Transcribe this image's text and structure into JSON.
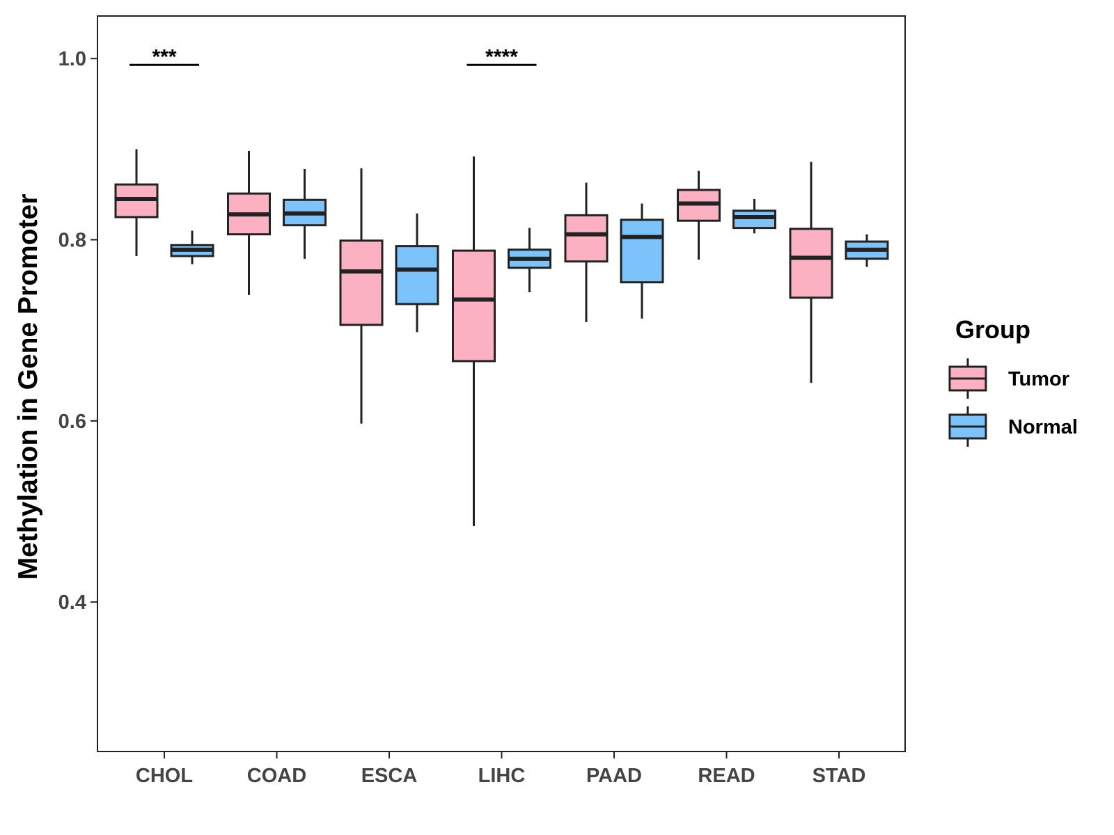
{
  "chart_data": {
    "type": "boxplot",
    "title": "",
    "xlabel": "",
    "ylabel": "Methylation in Gene Promoter",
    "ylim": [
      0.235,
      1.047
    ],
    "yticks": [
      0.4,
      0.6,
      0.8,
      1.0
    ],
    "ytick_labels": [
      "0.4",
      "0.6",
      "0.8",
      "1.0"
    ],
    "categories": [
      "CHOL",
      "COAD",
      "ESCA",
      "LIHC",
      "PAAD",
      "READ",
      "STAD"
    ],
    "legend": {
      "title": "Group",
      "position": "right",
      "entries": [
        {
          "name": "Tumor",
          "color": "#FBB1C2"
        },
        {
          "name": "Normal",
          "color": "#7BC3FA"
        }
      ]
    },
    "series": [
      {
        "name": "Tumor",
        "color": "#FBB1C2",
        "boxes": [
          {
            "min": 0.782,
            "q1": 0.825,
            "median": 0.845,
            "q3": 0.861,
            "max": 0.9
          },
          {
            "min": 0.739,
            "q1": 0.806,
            "median": 0.828,
            "q3": 0.851,
            "max": 0.898
          },
          {
            "min": 0.597,
            "q1": 0.706,
            "median": 0.765,
            "q3": 0.799,
            "max": 0.879
          },
          {
            "min": 0.484,
            "q1": 0.666,
            "median": 0.734,
            "q3": 0.788,
            "max": 0.892
          },
          {
            "min": 0.709,
            "q1": 0.776,
            "median": 0.806,
            "q3": 0.827,
            "max": 0.863
          },
          {
            "min": 0.778,
            "q1": 0.821,
            "median": 0.84,
            "q3": 0.855,
            "max": 0.876
          },
          {
            "min": 0.642,
            "q1": 0.736,
            "median": 0.78,
            "q3": 0.812,
            "max": 0.886
          }
        ]
      },
      {
        "name": "Normal",
        "color": "#7BC3FA",
        "boxes": [
          {
            "min": 0.773,
            "q1": 0.782,
            "median": 0.789,
            "q3": 0.794,
            "max": 0.81
          },
          {
            "min": 0.779,
            "q1": 0.816,
            "median": 0.829,
            "q3": 0.844,
            "max": 0.878
          },
          {
            "min": 0.698,
            "q1": 0.729,
            "median": 0.767,
            "q3": 0.793,
            "max": 0.829
          },
          {
            "min": 0.742,
            "q1": 0.769,
            "median": 0.779,
            "q3": 0.789,
            "max": 0.813
          },
          {
            "min": 0.713,
            "q1": 0.753,
            "median": 0.803,
            "q3": 0.822,
            "max": 0.84
          },
          {
            "min": 0.807,
            "q1": 0.813,
            "median": 0.825,
            "q3": 0.832,
            "max": 0.845
          },
          {
            "min": 0.77,
            "q1": 0.779,
            "median": 0.789,
            "q3": 0.798,
            "max": 0.806
          }
        ]
      }
    ],
    "annotations": [
      {
        "category": "CHOL",
        "label": "***",
        "y": 0.993
      },
      {
        "category": "LIHC",
        "label": "****",
        "y": 0.993
      }
    ]
  }
}
